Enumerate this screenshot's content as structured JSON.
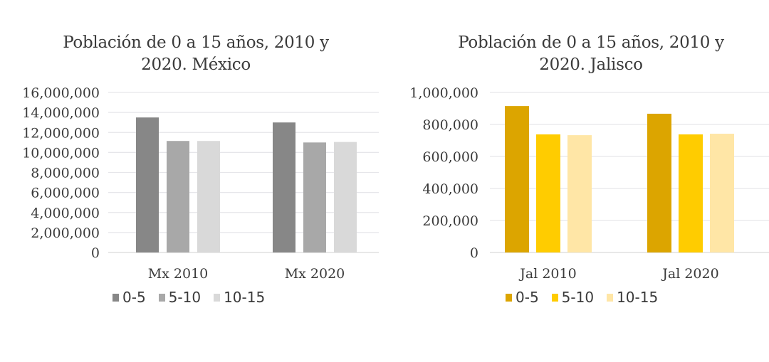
{
  "chart_data": [
    {
      "type": "bar",
      "title": "Población de 0 a 15 años, 2010 y 2020. México",
      "title_lines": [
        "Población de 0 a 15 años, 2010 y",
        "2020. México"
      ],
      "xlabel": "",
      "ylabel": "",
      "categories": [
        "Mx 2010",
        "Mx 2020"
      ],
      "series": [
        {
          "name": "0-5",
          "color": "#878787",
          "values": [
            13500000,
            13000000
          ]
        },
        {
          "name": "5-10",
          "color": "#a8a8a8",
          "values": [
            11150000,
            11000000
          ]
        },
        {
          "name": "10-15",
          "color": "#d9d9d9",
          "values": [
            11150000,
            11050000
          ]
        }
      ],
      "ylim": [
        0,
        16000000
      ],
      "yticks": [
        0,
        2000000,
        4000000,
        6000000,
        8000000,
        10000000,
        12000000,
        14000000,
        16000000
      ],
      "ytick_labels": [
        "0",
        "2,000,000",
        "4,000,000",
        "6,000,000",
        "8,000,000",
        "10,000,000",
        "12,000,000",
        "14,000,000",
        "16,000,000"
      ],
      "grid": true,
      "legend_position": "bottom"
    },
    {
      "type": "bar",
      "title": "Población de 0 a 15 años, 2010 y 2020. Jalisco",
      "title_lines": [
        "Población de 0 a 15 años, 2010 y",
        "2020. Jalisco"
      ],
      "xlabel": "",
      "ylabel": "",
      "categories": [
        "Jal 2010",
        "Jal 2020"
      ],
      "series": [
        {
          "name": "0-5",
          "color": "#dca500",
          "values": [
            915000,
            867000
          ]
        },
        {
          "name": "5-10",
          "color": "#ffcc00",
          "values": [
            738000,
            738000
          ]
        },
        {
          "name": "10-15",
          "color": "#ffe6a6",
          "values": [
            733000,
            742000
          ]
        }
      ],
      "ylim": [
        0,
        1000000
      ],
      "yticks": [
        0,
        200000,
        400000,
        600000,
        800000,
        1000000
      ],
      "ytick_labels": [
        "0",
        "200,000",
        "400,000",
        "600,000",
        "800,000",
        "1,000,000"
      ],
      "grid": true,
      "legend_position": "bottom"
    }
  ]
}
